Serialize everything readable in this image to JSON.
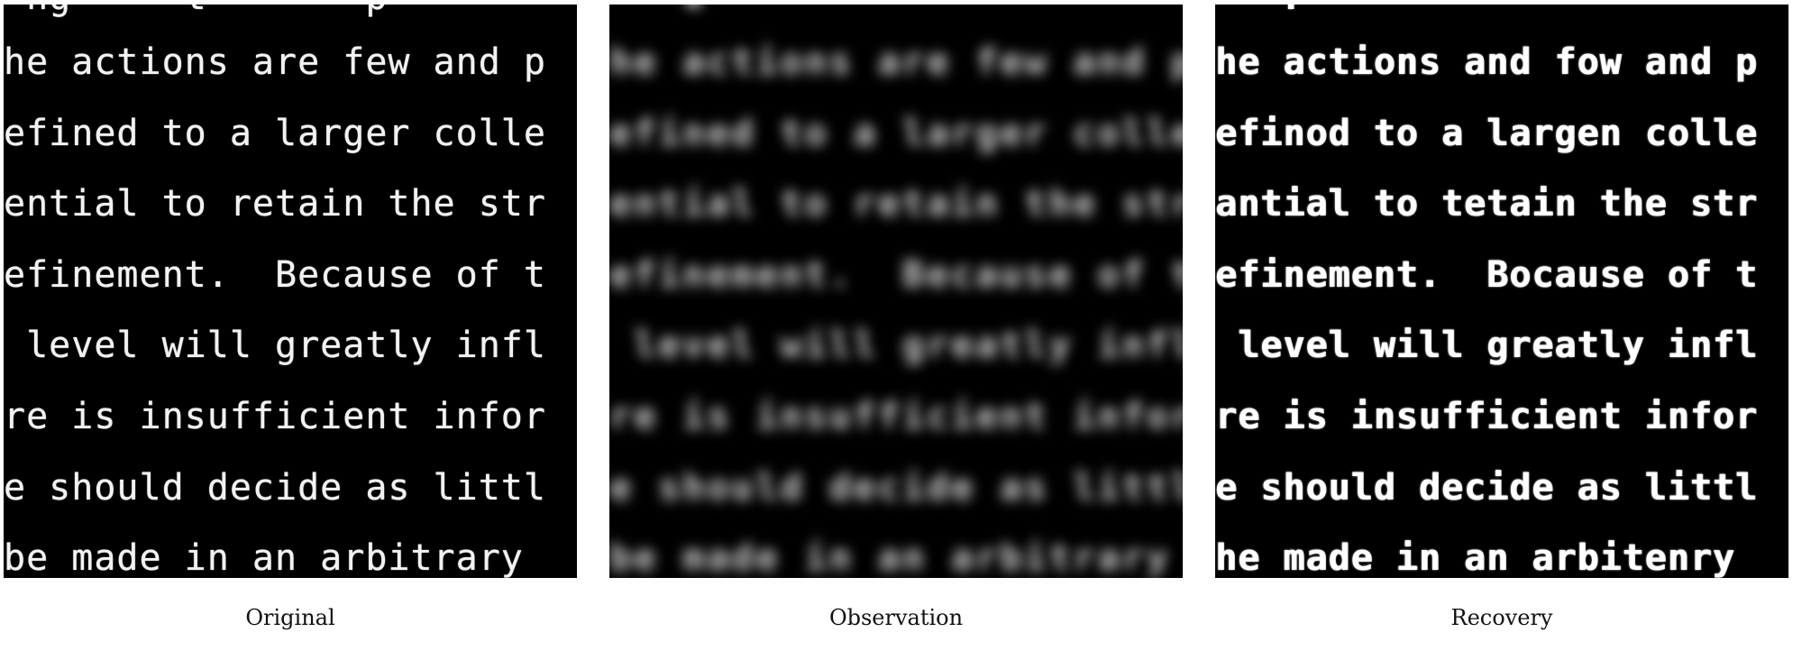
{
  "panels": [
    {
      "caption": "Original",
      "lines": [
        " ng     t       p",
        "he actions are few and p",
        "efined to a larger colle",
        "ential to retain the str",
        "efinement.  Because of t",
        " level will greatly infl",
        "re is insufficient infor",
        "e should decide as littl",
        "be made in an arbitrary "
      ]
    },
    {
      "caption": "Observation",
      "lines": [
        "   ▪       ",
        "he actions are few and p",
        "efined to a larger colle",
        "ential to retain the str",
        "efinement.  Because of t",
        " level will greatly infl",
        "re is insufficient infor",
        "e should decide as littl",
        "be made in an arbitrary "
      ]
    },
    {
      "caption": "Recovery",
      "lines": [
        "   r           ",
        "he actions and fow and p",
        "efinod to a largen colle",
        "antial to tetain the str",
        "efinement.  Bocause of t",
        " level will greatly infl",
        "re is insufficient infor",
        "e should decide as littl",
        "he made in an arbitenry "
      ]
    }
  ]
}
